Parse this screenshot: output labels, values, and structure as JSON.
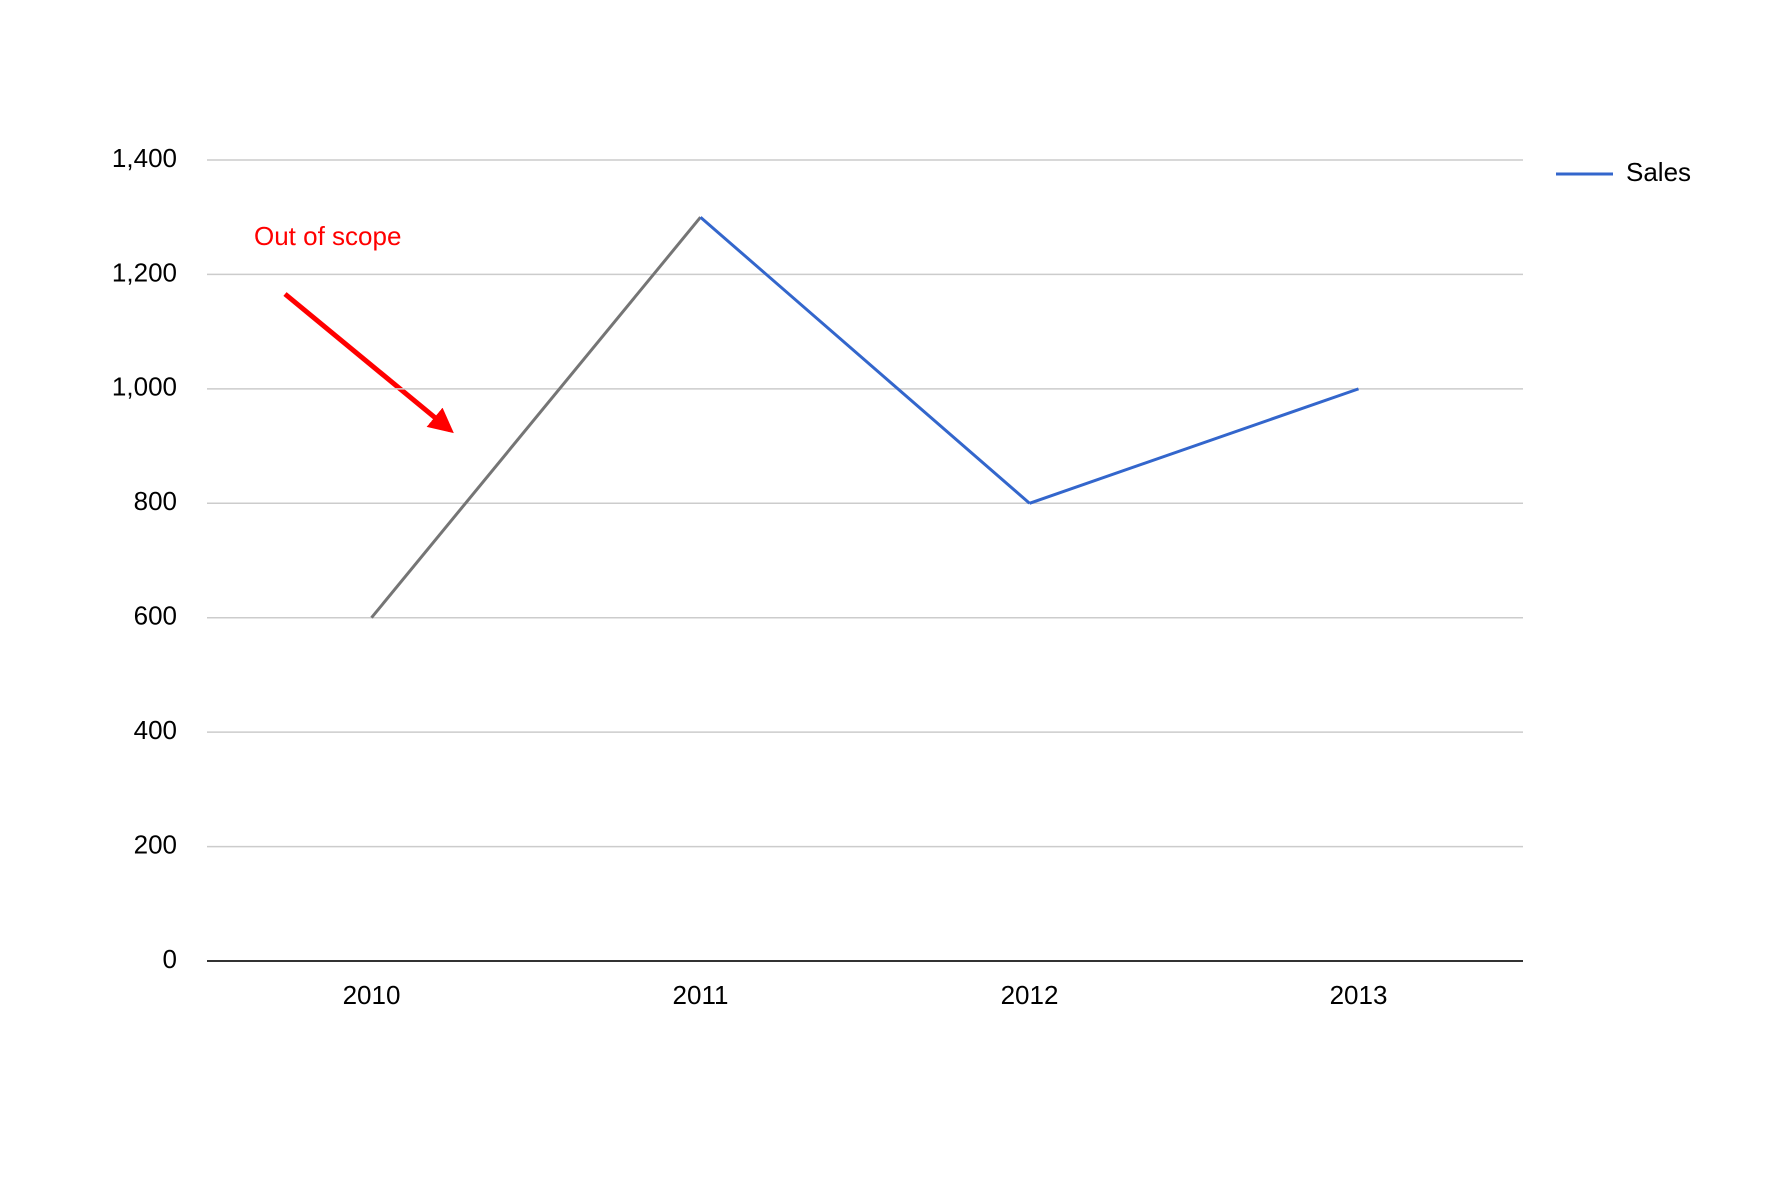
{
  "chart_data": {
    "type": "line",
    "categories": [
      "2010",
      "2011",
      "2012",
      "2013"
    ],
    "series": [
      {
        "name": "Sales",
        "color": "#3366cc",
        "values": [
          600,
          1300,
          800,
          1000
        ],
        "segment_colors": [
          "#757575",
          "#3366cc",
          "#3366cc"
        ]
      }
    ],
    "ylim": [
      0,
      1400
    ],
    "yticks": [
      0,
      200,
      400,
      600,
      800,
      {
        "value": 1000,
        "label": "1,000"
      },
      {
        "value": 1200,
        "label": "1,200"
      },
      {
        "value": 1400,
        "label": "1,400"
      }
    ],
    "grid": true,
    "legend": "right",
    "annotation": {
      "text": "Out of scope",
      "color": "#ff0000"
    }
  }
}
